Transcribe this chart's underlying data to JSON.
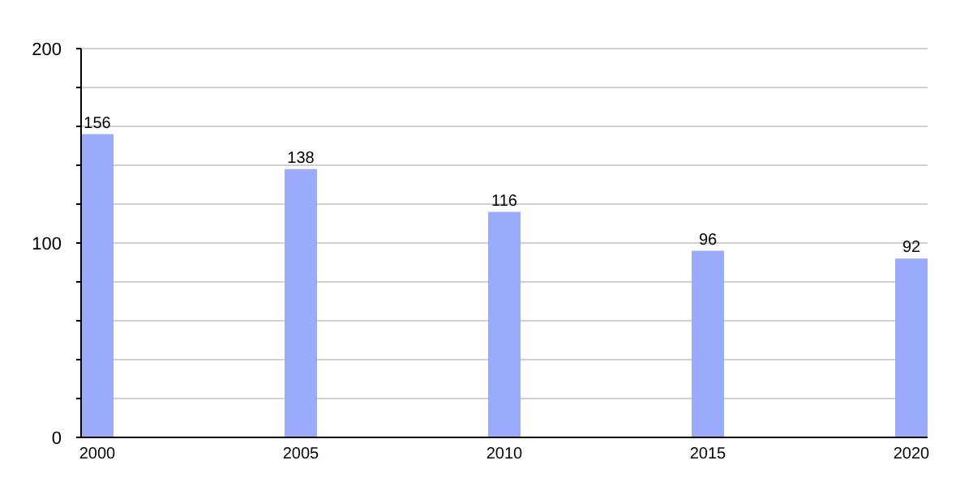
{
  "chart_data": {
    "type": "bar",
    "categories": [
      "2000",
      "2005",
      "2010",
      "2015",
      "2020"
    ],
    "values": [
      156,
      138,
      116,
      96,
      92
    ],
    "color": "#9aabfc",
    "ylim": [
      0,
      200
    ],
    "yticks": [
      0,
      {
        "value": 20,
        "label": null
      },
      {
        "value": 40,
        "label": null
      },
      {
        "value": 60,
        "label": null
      },
      {
        "value": 80,
        "label": null
      },
      100,
      {
        "value": 120,
        "label": null
      },
      {
        "value": 140,
        "label": null
      },
      {
        "value": 160,
        "label": null
      },
      {
        "value": 180,
        "label": null
      },
      200
    ],
    "grid": true,
    "data_labels": true
  }
}
